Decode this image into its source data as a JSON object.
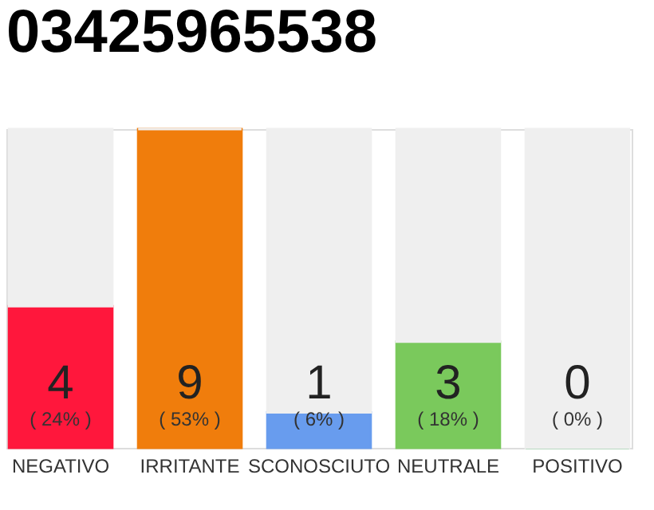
{
  "chart_data": {
    "type": "bar",
    "title": "03425965538",
    "categories": [
      "NEGATIVO",
      "IRRITANTE",
      "SCONOSCIUTO",
      "NEUTRALE",
      "POSITIVO"
    ],
    "stacked": true,
    "series": [
      {
        "colors": [
          "#ff173c",
          "#f07d0c",
          "#689cee",
          "#7ac95c",
          "#22aa44"
        ],
        "values": [
          4,
          9,
          1,
          3,
          0
        ],
        "value_labels": [
          "4",
          "9",
          "1",
          "3",
          "0"
        ]
      },
      {
        "color": "#efefef",
        "values": [
          5,
          0,
          8,
          6,
          9
        ],
        "value_labels": [
          null,
          null,
          null,
          null,
          null
        ]
      }
    ],
    "annotations": [
      "( 24% )",
      "( 53% )",
      "( 6% )",
      "( 18% )",
      "( 0% )"
    ],
    "tick_labels": "x",
    "grid": false
  }
}
